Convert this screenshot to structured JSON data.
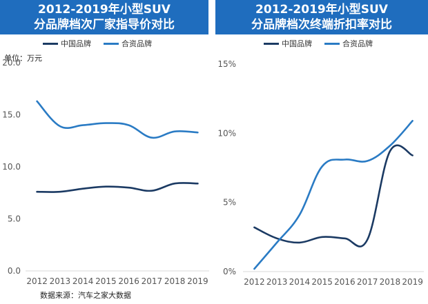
{
  "colors": {
    "china": "#1b3a63",
    "joint": "#2a7bc4",
    "title_bg": "#1f6dbe",
    "axis": "#d9d9d9"
  },
  "left": {
    "title_line1": "2012-2019年小型SUV",
    "title_line2": "分品牌档次厂家指导价对比",
    "unit_label": "单位：万元",
    "source": "数据来源：汽车之家大数据"
  },
  "right": {
    "title_line1": "2012-2019年小型SUV",
    "title_line2": "分品牌档次终端折扣率对比"
  },
  "chart_data": [
    {
      "type": "line",
      "title": "2012-2019年小型SUV分品牌档次厂家指导价对比",
      "ylabel": "万元",
      "ylim": [
        0,
        20
      ],
      "yticks": [
        0,
        5,
        10,
        15,
        20
      ],
      "ytick_labels": [
        "0.0",
        "5.0",
        "10.0",
        "15.0",
        "20.0"
      ],
      "categories": [
        "2012",
        "2013",
        "2014",
        "2015",
        "2016",
        "2017",
        "2018",
        "2019"
      ],
      "series": [
        {
          "name": "中国品牌",
          "color": "#1b3a63",
          "values": [
            7.6,
            7.6,
            7.9,
            8.1,
            8.0,
            7.7,
            8.4,
            8.4
          ]
        },
        {
          "name": "合资品牌",
          "color": "#2a7bc4",
          "values": [
            16.3,
            13.9,
            14.0,
            14.2,
            14.0,
            12.8,
            13.4,
            13.3
          ]
        }
      ]
    },
    {
      "type": "line",
      "title": "2012-2019年小型SUV分品牌档次终端折扣率对比",
      "ylabel": "%",
      "ylim": [
        0,
        15
      ],
      "yticks": [
        0,
        5,
        10,
        15
      ],
      "ytick_labels": [
        "0%",
        "5%",
        "10%",
        "15%"
      ],
      "categories": [
        "2012",
        "2013",
        "2014",
        "2015",
        "2016",
        "2017",
        "2018",
        "2019"
      ],
      "series": [
        {
          "name": "中国品牌",
          "color": "#1b3a63",
          "values": [
            3.2,
            2.4,
            2.1,
            2.5,
            2.4,
            2.3,
            8.7,
            8.4
          ]
        },
        {
          "name": "合资品牌",
          "color": "#2a7bc4",
          "values": [
            0.2,
            2.1,
            4.1,
            7.6,
            8.1,
            8.0,
            9.1,
            10.9
          ]
        }
      ]
    }
  ]
}
